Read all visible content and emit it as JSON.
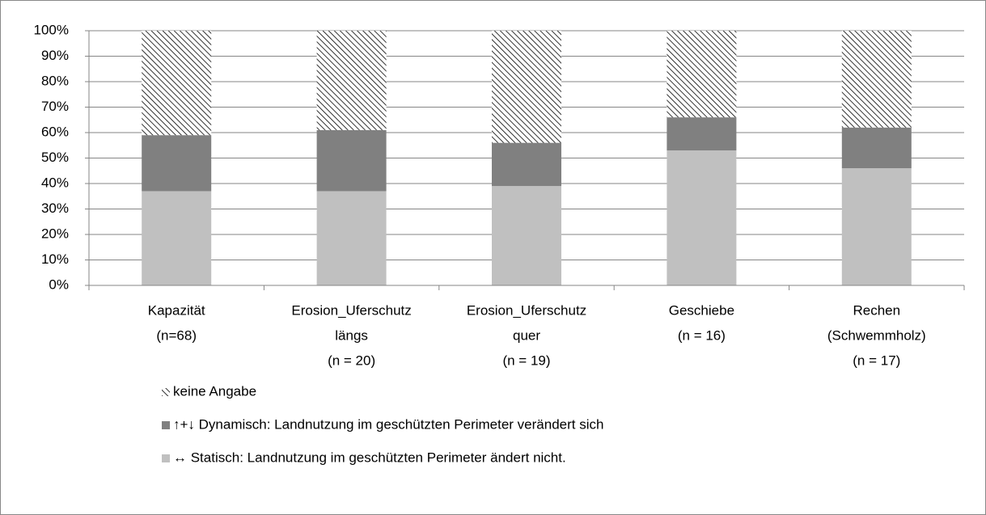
{
  "chart_data": {
    "type": "stacked_bar",
    "categories": [
      [
        "Kapazität",
        "(n=68)"
      ],
      [
        "Erosion_Uferschutz",
        "längs",
        "(n = 20)"
      ],
      [
        "Erosion_Uferschutz",
        "quer",
        "(n = 19)"
      ],
      [
        "Geschiebe",
        "(n = 16)"
      ],
      [
        "Rechen",
        "(Schwemmholz)",
        "(n = 17)"
      ]
    ],
    "series": [
      {
        "name": "↔ Statisch: Landnutzung im geschützten Perimeter ändert nicht.",
        "color": "#c0c0c0",
        "values": [
          37,
          37,
          39,
          53,
          46
        ]
      },
      {
        "name": "↑+↓  Dynamisch: Landnutzung im geschützten Perimeter verändert sich",
        "color": "#808080",
        "values": [
          22,
          24,
          17,
          13,
          16
        ]
      },
      {
        "name": "keine Angabe",
        "color": "#000000",
        "hatch": true,
        "values": [
          41,
          39,
          44,
          34,
          38
        ]
      }
    ],
    "ylim": [
      0,
      100
    ],
    "yticks": [
      {
        "value": 0,
        "label": "0%"
      },
      {
        "value": 10,
        "label": "10%"
      },
      {
        "value": 20,
        "label": "20%"
      },
      {
        "value": 30,
        "label": "30%"
      },
      {
        "value": 40,
        "label": "40%"
      },
      {
        "value": 50,
        "label": "50%"
      },
      {
        "value": 60,
        "label": "60%"
      },
      {
        "value": 70,
        "label": "70%"
      },
      {
        "value": 80,
        "label": "80%"
      },
      {
        "value": 90,
        "label": "90%"
      },
      {
        "value": 100,
        "label": "100%"
      }
    ],
    "grid": true,
    "legend": "bottom"
  }
}
